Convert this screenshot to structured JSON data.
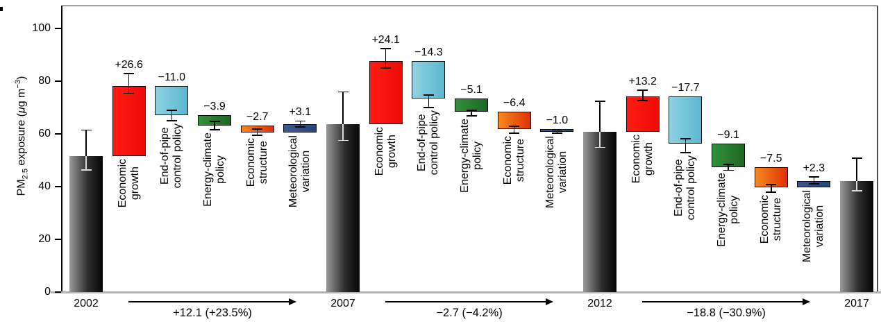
{
  "chart_data": {
    "type": "bar",
    "subtype": "waterfall-decomposition-with-error-bars",
    "title": "",
    "ylabel": "PM2.5 exposure (μg m−3)",
    "ylabel_rich": {
      "pm": "PM",
      "sub": "2.5",
      "mid": " exposure (",
      "mu": "μ",
      "unit": "g m",
      "sup": "−3",
      "close": ")"
    },
    "xlabel": "",
    "ylim": [
      0,
      108.5
    ],
    "yticks": [
      0,
      20,
      40,
      60,
      80,
      100
    ],
    "grid": false,
    "legend": "none",
    "years": [
      "2002",
      "2007",
      "2012",
      "2017"
    ],
    "year_values": {
      "2002": 51.5,
      "2007": 63.6,
      "2012": 60.9,
      "2017": 42.1
    },
    "factors": [
      "Economic growth",
      "End-of-pipe control policy",
      "Energy-climate policy",
      "Economic structure",
      "Meteorological variation"
    ],
    "bars": [
      {
        "kind": "year",
        "id": "year-2002",
        "label": "2002",
        "value": 51.5,
        "err": [
          46.3,
          61.4
        ]
      },
      {
        "kind": "delta",
        "id": "economic-growth",
        "lines": [
          "Economic",
          "growth"
        ],
        "annotation": "+26.6",
        "delta": 26.6,
        "start": 51.5,
        "end": 78.1,
        "err": [
          75.4,
          82.9
        ],
        "color": "red"
      },
      {
        "kind": "delta",
        "id": "end-of-pipe",
        "lines": [
          "End-of-pipe",
          "control policy"
        ],
        "annotation": "−11.0",
        "delta": -11.0,
        "start": 78.1,
        "end": 67.1,
        "err": [
          65.0,
          68.9
        ],
        "color": "cyan"
      },
      {
        "kind": "delta",
        "id": "energy-climate",
        "lines": [
          "Energy-climate",
          "policy"
        ],
        "annotation": "−3.9",
        "delta": -3.9,
        "start": 67.1,
        "end": 63.2,
        "err": [
          61.6,
          64.7
        ],
        "color": "green"
      },
      {
        "kind": "delta",
        "id": "economic-structure",
        "lines": [
          "Economic",
          "structure"
        ],
        "annotation": "−2.7",
        "delta": -2.7,
        "start": 63.2,
        "end": 60.5,
        "err": [
          59.5,
          61.8
        ],
        "color": "orange"
      },
      {
        "kind": "delta",
        "id": "meteorological",
        "lines": [
          "Meteorological",
          "variation"
        ],
        "annotation": "+3.1",
        "delta": 3.1,
        "start": 60.5,
        "end": 63.6,
        "err": [
          62.6,
          64.9
        ],
        "color": "blue"
      },
      {
        "kind": "year",
        "id": "year-2007",
        "label": "2007",
        "value": 63.6,
        "err": [
          57.5,
          75.9
        ]
      },
      {
        "kind": "delta",
        "id": "economic-growth",
        "lines": [
          "Economic",
          "growth"
        ],
        "annotation": "+24.1",
        "delta": 24.1,
        "start": 63.6,
        "end": 87.7,
        "err": [
          85.0,
          92.4
        ],
        "color": "red"
      },
      {
        "kind": "delta",
        "id": "end-of-pipe",
        "lines": [
          "End-of-pipe",
          "control policy"
        ],
        "annotation": "−14.3",
        "delta": -14.3,
        "start": 87.7,
        "end": 73.4,
        "err": [
          70.0,
          74.7
        ],
        "color": "cyan"
      },
      {
        "kind": "delta",
        "id": "energy-climate",
        "lines": [
          "Energy-climate",
          "policy"
        ],
        "annotation": "−5.1",
        "delta": -5.1,
        "start": 73.4,
        "end": 68.3,
        "err": [
          66.9,
          69.0
        ],
        "color": "green"
      },
      {
        "kind": "delta",
        "id": "economic-structure",
        "lines": [
          "Economic",
          "structure"
        ],
        "annotation": "−6.4",
        "delta": -6.4,
        "start": 68.3,
        "end": 61.9,
        "err": [
          60.3,
          62.9
        ],
        "color": "orange"
      },
      {
        "kind": "delta",
        "id": "meteorological",
        "lines": [
          "Meteorological",
          "variation"
        ],
        "annotation": "−1.0",
        "delta": -1.0,
        "start": 61.9,
        "end": 60.9,
        "err": [
          60.3,
          61.5
        ],
        "color": "blue"
      },
      {
        "kind": "year",
        "id": "year-2012",
        "label": "2012",
        "value": 60.9,
        "err": [
          54.9,
          72.4
        ]
      },
      {
        "kind": "delta",
        "id": "economic-growth",
        "lines": [
          "Economic",
          "growth"
        ],
        "annotation": "+13.2",
        "delta": 13.2,
        "start": 60.9,
        "end": 74.1,
        "err": [
          72.6,
          76.6
        ],
        "color": "red"
      },
      {
        "kind": "delta",
        "id": "end-of-pipe",
        "lines": [
          "End-of-pipe",
          "control policy"
        ],
        "annotation": "−17.7",
        "delta": -17.7,
        "start": 74.1,
        "end": 56.4,
        "err": [
          52.9,
          58.2
        ],
        "color": "cyan"
      },
      {
        "kind": "delta",
        "id": "energy-climate",
        "lines": [
          "Energy-climate",
          "policy"
        ],
        "annotation": "−9.1",
        "delta": -9.1,
        "start": 56.4,
        "end": 47.3,
        "err": [
          46.2,
          48.4
        ],
        "color": "green"
      },
      {
        "kind": "delta",
        "id": "economic-structure",
        "lines": [
          "Economic",
          "structure"
        ],
        "annotation": "−7.5",
        "delta": -7.5,
        "start": 47.3,
        "end": 39.8,
        "err": [
          37.9,
          40.8
        ],
        "color": "orange"
      },
      {
        "kind": "delta",
        "id": "meteorological",
        "lines": [
          "Meteorological",
          "variation"
        ],
        "annotation": "+2.3",
        "delta": 2.3,
        "start": 39.8,
        "end": 42.1,
        "err": [
          41.1,
          43.7
        ],
        "color": "blue"
      },
      {
        "kind": "year",
        "id": "year-2017",
        "label": "2017",
        "value": 42.1,
        "err": [
          38.4,
          50.8
        ]
      }
    ],
    "transitions": [
      {
        "label": "+12.1 (+23.5%)",
        "value": 12.1,
        "percent": "+23.5%",
        "from": 0,
        "to": 6
      },
      {
        "label": "−2.7 (−4.2%)",
        "value": -2.7,
        "percent": "−4.2%",
        "from": 6,
        "to": 12
      },
      {
        "label": "−18.8 (−30.9%)",
        "value": -18.8,
        "percent": "−30.9%",
        "from": 12,
        "to": 18
      }
    ]
  },
  "colors": {
    "year_bar": [
      "#9a9a9a",
      "#2e2e2e",
      "#050505"
    ],
    "red": [
      "#ff1d13",
      "#ed0b05"
    ],
    "cyan": [
      "#8fd2e3",
      "#5cb6d0"
    ],
    "green": [
      "#31903a",
      "#1c6824"
    ],
    "orange": [
      "#f68a1f",
      "#e03104"
    ],
    "blue": [
      "#3d5993",
      "#2a4575"
    ],
    "whisker": "#000000",
    "whisker_light": "#dcdcdc",
    "baseline": "#b3b3b3",
    "frame": "#333333",
    "text": "#000000"
  }
}
